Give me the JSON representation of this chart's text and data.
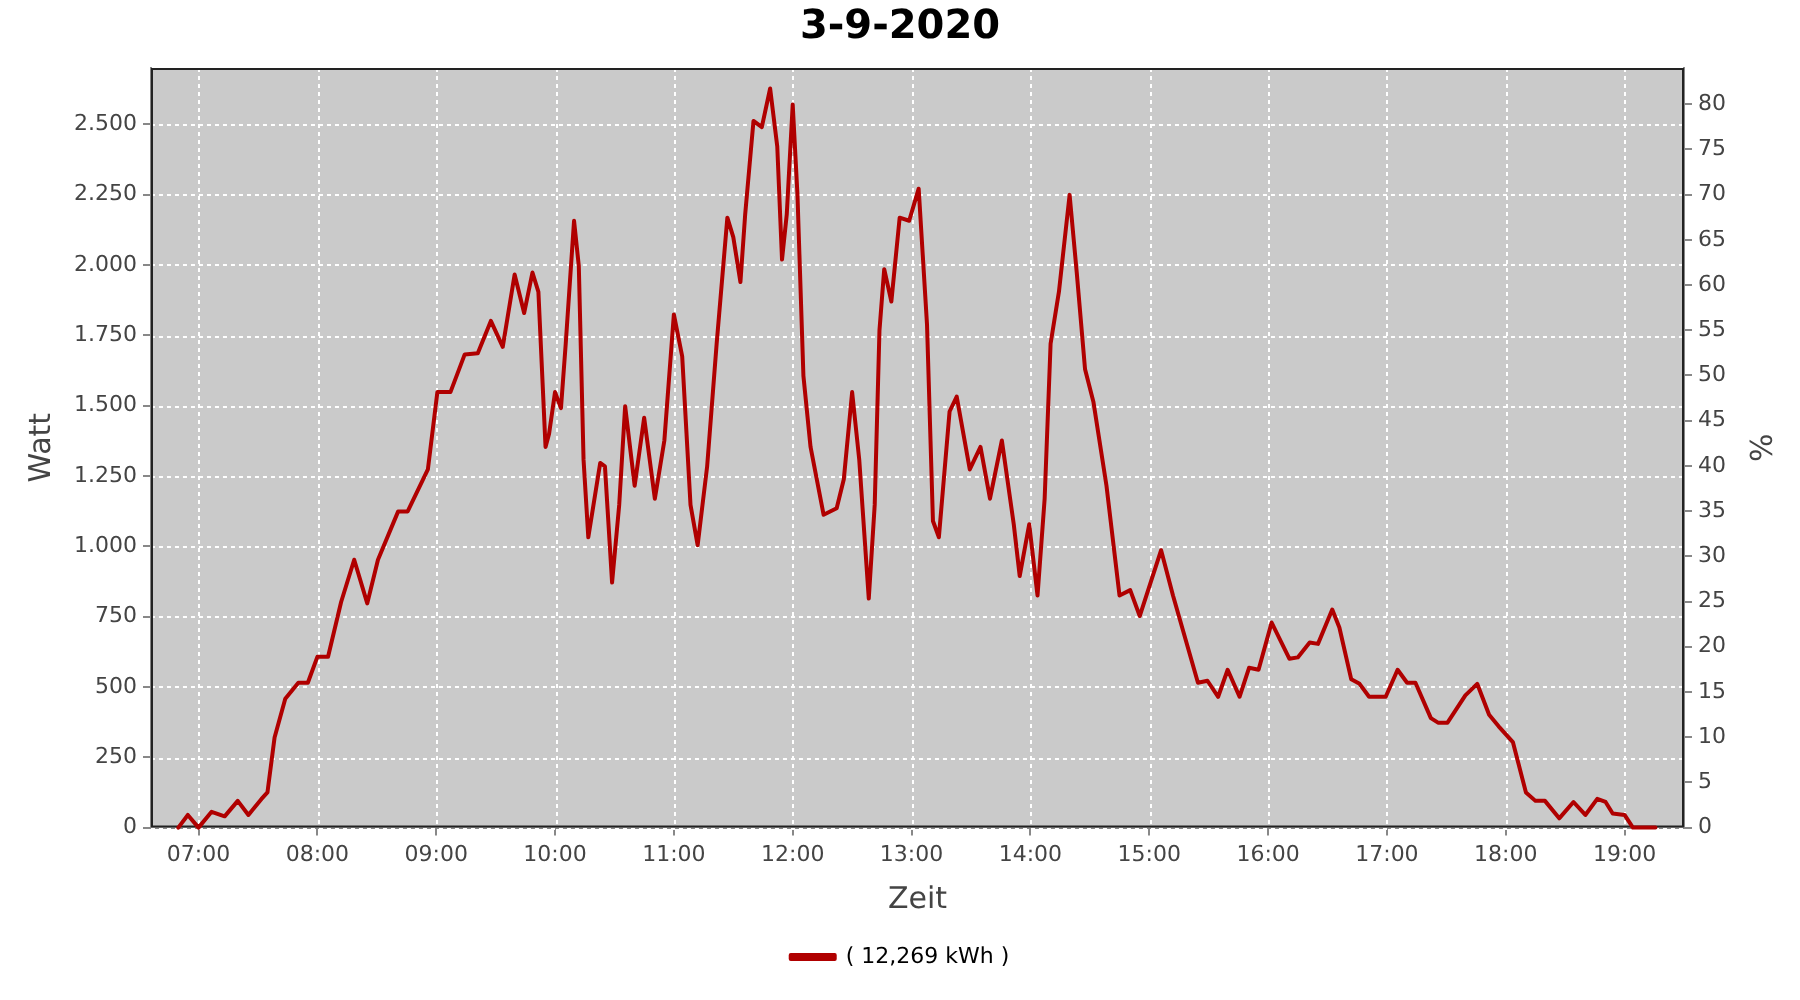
{
  "chart_data": {
    "type": "line",
    "title": "3-9-2020",
    "xlabel": "Zeit",
    "ylabel": "Watt",
    "y2label": "%",
    "x": [
      6.83,
      6.91,
      7.0,
      7.11,
      7.22,
      7.33,
      7.42,
      7.53,
      7.58,
      7.64,
      7.73,
      7.84,
      7.92,
      8.0,
      8.09,
      8.2,
      8.31,
      8.42,
      8.51,
      8.68,
      8.76,
      8.93,
      9.01,
      9.12,
      9.24,
      9.35,
      9.46,
      9.56,
      9.66,
      9.74,
      9.81,
      9.86,
      9.92,
      9.95,
      10.0,
      10.05,
      10.09,
      10.16,
      10.2,
      10.24,
      10.28,
      10.38,
      10.42,
      10.48,
      10.54,
      10.59,
      10.67,
      10.75,
      10.84,
      10.92,
      11.0,
      11.07,
      11.14,
      11.2,
      11.28,
      11.36,
      11.45,
      11.5,
      11.56,
      11.6,
      11.67,
      11.74,
      11.81,
      11.87,
      11.91,
      11.95,
      12.0,
      12.04,
      12.09,
      12.15,
      12.26,
      12.37,
      12.43,
      12.5,
      12.56,
      12.64,
      12.69,
      12.73,
      12.77,
      12.83,
      12.9,
      12.98,
      13.06,
      13.13,
      13.18,
      13.23,
      13.32,
      13.38,
      13.49,
      13.58,
      13.66,
      13.76,
      13.86,
      13.91,
      13.99,
      14.06,
      14.12,
      14.17,
      14.24,
      14.33,
      14.39,
      14.46,
      14.53,
      14.64,
      14.75,
      14.84,
      14.92,
      15.1,
      15.2,
      15.41,
      15.49,
      15.58,
      15.66,
      15.76,
      15.84,
      15.92,
      16.03,
      16.18,
      16.25,
      16.35,
      16.42,
      16.54,
      16.6,
      16.7,
      16.77,
      16.85,
      16.99,
      17.09,
      17.17,
      17.24,
      17.37,
      17.43,
      17.51,
      17.66,
      17.76,
      17.86,
      17.94,
      18.06,
      18.17,
      18.25,
      18.33,
      18.45,
      18.57,
      18.67,
      18.77,
      18.84,
      18.9,
      19.0,
      19.07,
      19.26
    ],
    "series": [
      {
        "name": "( 12,269 kWh )",
        "color": "#b00000",
        "values": [
          0,
          45,
          0,
          56,
          40,
          95,
          45,
          102,
          125,
          320,
          458,
          515,
          515,
          607,
          607,
          802,
          952,
          797,
          952,
          1124,
          1124,
          1273,
          1548,
          1548,
          1682,
          1686,
          1801,
          1709,
          1966,
          1829,
          1973,
          1904,
          1353,
          1400,
          1548,
          1491,
          1720,
          2157,
          1996,
          1307,
          1032,
          1296,
          1284,
          871,
          1147,
          1498,
          1215,
          1457,
          1169,
          1376,
          1824,
          1675,
          1147,
          1004,
          1284,
          1720,
          2168,
          2099,
          1939,
          2180,
          2512,
          2490,
          2627,
          2421,
          2019,
          2180,
          2570,
          2249,
          1606,
          1353,
          1112,
          1135,
          1238,
          1548,
          1307,
          814,
          1147,
          1767,
          1985,
          1870,
          2168,
          2157,
          2271,
          1789,
          1090,
          1032,
          1479,
          1532,
          1273,
          1353,
          1169,
          1376,
          1078,
          894,
          1078,
          825,
          1169,
          1720,
          1904,
          2249,
          1973,
          1629,
          1514,
          1216,
          825,
          844,
          752,
          986,
          825,
          515,
          522,
          465,
          561,
          465,
          568,
          561,
          729,
          600,
          605,
          658,
          653,
          775,
          711,
          527,
          511,
          465,
          465,
          561,
          515,
          515,
          389,
          373,
          373,
          470,
          511,
          401,
          360,
          304,
          125,
          95,
          95,
          33,
          91,
          45,
          102,
          91,
          50,
          45,
          0,
          0
        ]
      }
    ],
    "xlim": [
      6.6,
      19.5
    ],
    "xticks": [
      {
        "value": 7,
        "label": "07:00"
      },
      {
        "value": 8,
        "label": "08:00"
      },
      {
        "value": 9,
        "label": "09:00"
      },
      {
        "value": 10,
        "label": "10:00"
      },
      {
        "value": 11,
        "label": "11:00"
      },
      {
        "value": 12,
        "label": "12:00"
      },
      {
        "value": 13,
        "label": "13:00"
      },
      {
        "value": 14,
        "label": "14:00"
      },
      {
        "value": 15,
        "label": "15:00"
      },
      {
        "value": 16,
        "label": "16:00"
      },
      {
        "value": 17,
        "label": "17:00"
      },
      {
        "value": 18,
        "label": "18:00"
      },
      {
        "value": 19,
        "label": "19:00"
      }
    ],
    "ylim": [
      0,
      2700
    ],
    "yticks": [
      0,
      {
        "value": 250,
        "label": "250"
      },
      {
        "value": 500,
        "label": "500"
      },
      {
        "value": 750,
        "label": "750"
      },
      {
        "value": 1000,
        "label": "1.000"
      },
      {
        "value": 1250,
        "label": "1.250"
      },
      {
        "value": 1500,
        "label": "1.500"
      },
      {
        "value": 1750,
        "label": "1.750"
      },
      {
        "value": 2000,
        "label": "2.000"
      },
      {
        "value": 2250,
        "label": "2.250"
      },
      {
        "value": 2500,
        "label": "2.500"
      }
    ],
    "y2lim": [
      0,
      84
    ],
    "y2ticks": [
      0,
      5,
      10,
      15,
      20,
      25,
      30,
      35,
      40,
      45,
      50,
      55,
      60,
      65,
      70,
      75,
      80
    ],
    "grid": true,
    "legend": "bottom",
    "marker": "none",
    "line_style": "solid"
  }
}
